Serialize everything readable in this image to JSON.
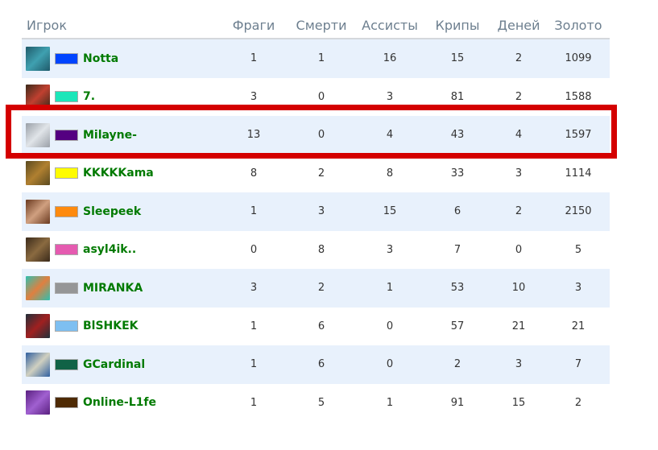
{
  "columns": [
    "Игрок",
    "Фраги",
    "Смерти",
    "Ассисты",
    "Крипы",
    "Деней",
    "Золото"
  ],
  "highlight_color": "#d40000",
  "rows": [
    {
      "name": "Notta",
      "color": "#0044ff",
      "avatar": [
        "#1f5a6a",
        "#3fa0b0"
      ],
      "kills": "1",
      "deaths": "1",
      "assists": "16",
      "creeps": "15",
      "denies": "2",
      "gold": "1099"
    },
    {
      "name": "7.",
      "color": "#1ce6b9",
      "avatar": [
        "#3a2a1a",
        "#c04030"
      ],
      "kills": "3",
      "deaths": "0",
      "assists": "3",
      "creeps": "81",
      "denies": "2",
      "gold": "1588"
    },
    {
      "name": "Milayne-",
      "color": "#540081",
      "avatar": [
        "#9aa0a8",
        "#e0e4e8"
      ],
      "kills": "13",
      "deaths": "0",
      "assists": "4",
      "creeps": "43",
      "denies": "4",
      "gold": "1597",
      "highlighted": true
    },
    {
      "name": "KKKKKama",
      "color": "#fffc00",
      "avatar": [
        "#5a4a20",
        "#b08030"
      ],
      "kills": "8",
      "deaths": "2",
      "assists": "8",
      "creeps": "33",
      "denies": "3",
      "gold": "1114"
    },
    {
      "name": "Sleepeek",
      "color": "#fe8a0e",
      "avatar": [
        "#6a3a20",
        "#d0a080"
      ],
      "kills": "1",
      "deaths": "3",
      "assists": "15",
      "creeps": "6",
      "denies": "2",
      "gold": "2150"
    },
    {
      "name": "asyl4ik..",
      "color": "#e55bb0",
      "avatar": [
        "#3a2a1a",
        "#8a6a40"
      ],
      "kills": "0",
      "deaths": "8",
      "assists": "3",
      "creeps": "7",
      "denies": "0",
      "gold": "5"
    },
    {
      "name": "MIRANKA",
      "color": "#959697",
      "avatar": [
        "#2fc0b0",
        "#e08040"
      ],
      "kills": "3",
      "deaths": "2",
      "assists": "1",
      "creeps": "53",
      "denies": "10",
      "gold": "3"
    },
    {
      "name": "BlSHKEK",
      "color": "#7ebff1",
      "avatar": [
        "#20303a",
        "#a02020"
      ],
      "kills": "1",
      "deaths": "6",
      "assists": "0",
      "creeps": "57",
      "denies": "21",
      "gold": "21"
    },
    {
      "name": "GCardinal",
      "color": "#106246",
      "avatar": [
        "#3060a0",
        "#d0d0c0"
      ],
      "kills": "1",
      "deaths": "6",
      "assists": "0",
      "creeps": "2",
      "denies": "3",
      "gold": "7"
    },
    {
      "name": "Online-L1fe",
      "color": "#4e2a04",
      "avatar": [
        "#5a2080",
        "#a060d0"
      ],
      "kills": "1",
      "deaths": "5",
      "assists": "1",
      "creeps": "91",
      "denies": "15",
      "gold": "2"
    }
  ]
}
